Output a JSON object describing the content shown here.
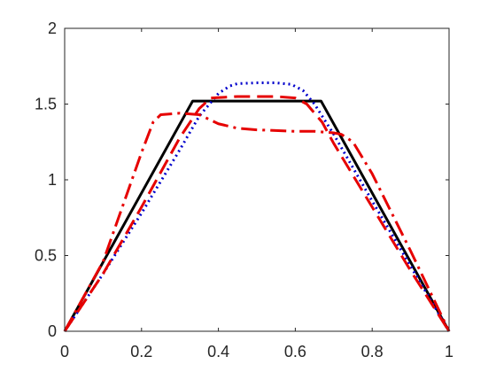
{
  "chart_data": {
    "type": "line",
    "title": "",
    "xlabel": "",
    "ylabel": "",
    "xlim": [
      0,
      1
    ],
    "ylim": [
      0,
      2
    ],
    "xticks": [
      0,
      0.2,
      0.4,
      0.6,
      0.8,
      1
    ],
    "xtick_labels": [
      "0",
      "0.2",
      "0.4",
      "0.6",
      "0.8",
      "1"
    ],
    "yticks": [
      0,
      0.5,
      1,
      1.5,
      2
    ],
    "ytick_labels": [
      "0",
      "0.5",
      "1",
      "1.5",
      "2"
    ],
    "grid": false,
    "box": true,
    "series": [
      {
        "color": "#000000",
        "style": "solid",
        "x": [
          0,
          0.333,
          0.667,
          1
        ],
        "y": [
          0,
          1.52,
          1.52,
          0
        ]
      },
      {
        "color": "#0000cc",
        "style": "dotted",
        "x": [
          0,
          0.1,
          0.2,
          0.3,
          0.35,
          0.4,
          0.43,
          0.45,
          0.5,
          0.55,
          0.59,
          0.62,
          0.65,
          0.7,
          0.8,
          0.9,
          1
        ],
        "y": [
          0,
          0.38,
          0.78,
          1.2,
          1.42,
          1.57,
          1.62,
          1.635,
          1.64,
          1.64,
          1.63,
          1.59,
          1.5,
          1.3,
          0.86,
          0.43,
          0
        ]
      },
      {
        "color": "#e60000",
        "style": "dashed",
        "x": [
          0,
          0.1,
          0.2,
          0.3,
          0.35,
          0.38,
          0.45,
          0.55,
          0.6,
          0.63,
          0.67,
          0.7,
          0.8,
          0.9,
          1
        ],
        "y": [
          0,
          0.38,
          0.82,
          1.28,
          1.47,
          1.54,
          1.55,
          1.55,
          1.54,
          1.5,
          1.38,
          1.24,
          0.82,
          0.4,
          0
        ]
      },
      {
        "color": "#e60000",
        "style": "dashdot",
        "x": [
          0,
          0.1,
          0.2,
          0.23,
          0.25,
          0.3,
          0.35,
          0.4,
          0.45,
          0.5,
          0.6,
          0.65,
          0.7,
          0.72,
          0.75,
          0.8,
          0.9,
          1
        ],
        "y": [
          0,
          0.46,
          1.18,
          1.38,
          1.43,
          1.44,
          1.43,
          1.37,
          1.34,
          1.33,
          1.32,
          1.32,
          1.31,
          1.3,
          1.25,
          1.04,
          0.53,
          0
        ]
      }
    ]
  }
}
